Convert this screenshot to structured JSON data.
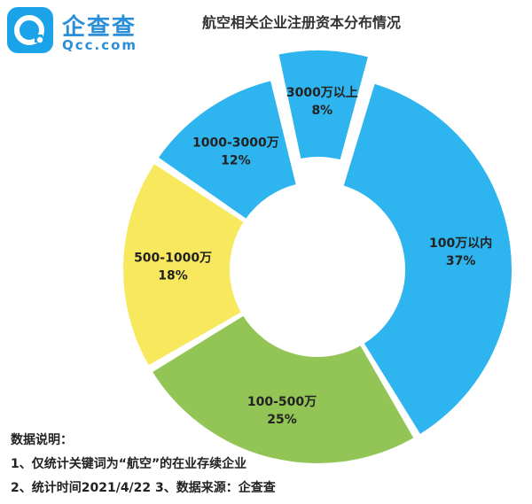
{
  "logo": {
    "name": "企查查",
    "domain": "Qcc.com"
  },
  "chart_data": {
    "type": "pie",
    "title": "航空相关企业注册资本分布情况",
    "slices": [
      {
        "label": "100万以内",
        "percent": "37%",
        "value": 37,
        "color": "#2eb4ee",
        "exploded": false
      },
      {
        "label": "100-500万",
        "percent": "25%",
        "value": 25,
        "color": "#92c556",
        "exploded": false
      },
      {
        "label": "500-1000万",
        "percent": "18%",
        "value": 18,
        "color": "#f8e85d",
        "exploded": false
      },
      {
        "label": "1000-3000万",
        "percent": "12%",
        "value": 12,
        "color": "#2eb4ee",
        "exploded": false
      },
      {
        "label": "3000万以上",
        "percent": "8%",
        "value": 8,
        "color": "#2eb4ee",
        "exploded": true
      }
    ]
  },
  "notes": {
    "heading": "数据说明：",
    "line1": "1、仅统计关键词为“航空”的在业存续企业",
    "line2": "2、统计时间2021/4/22   3、数据来源：企查查"
  }
}
